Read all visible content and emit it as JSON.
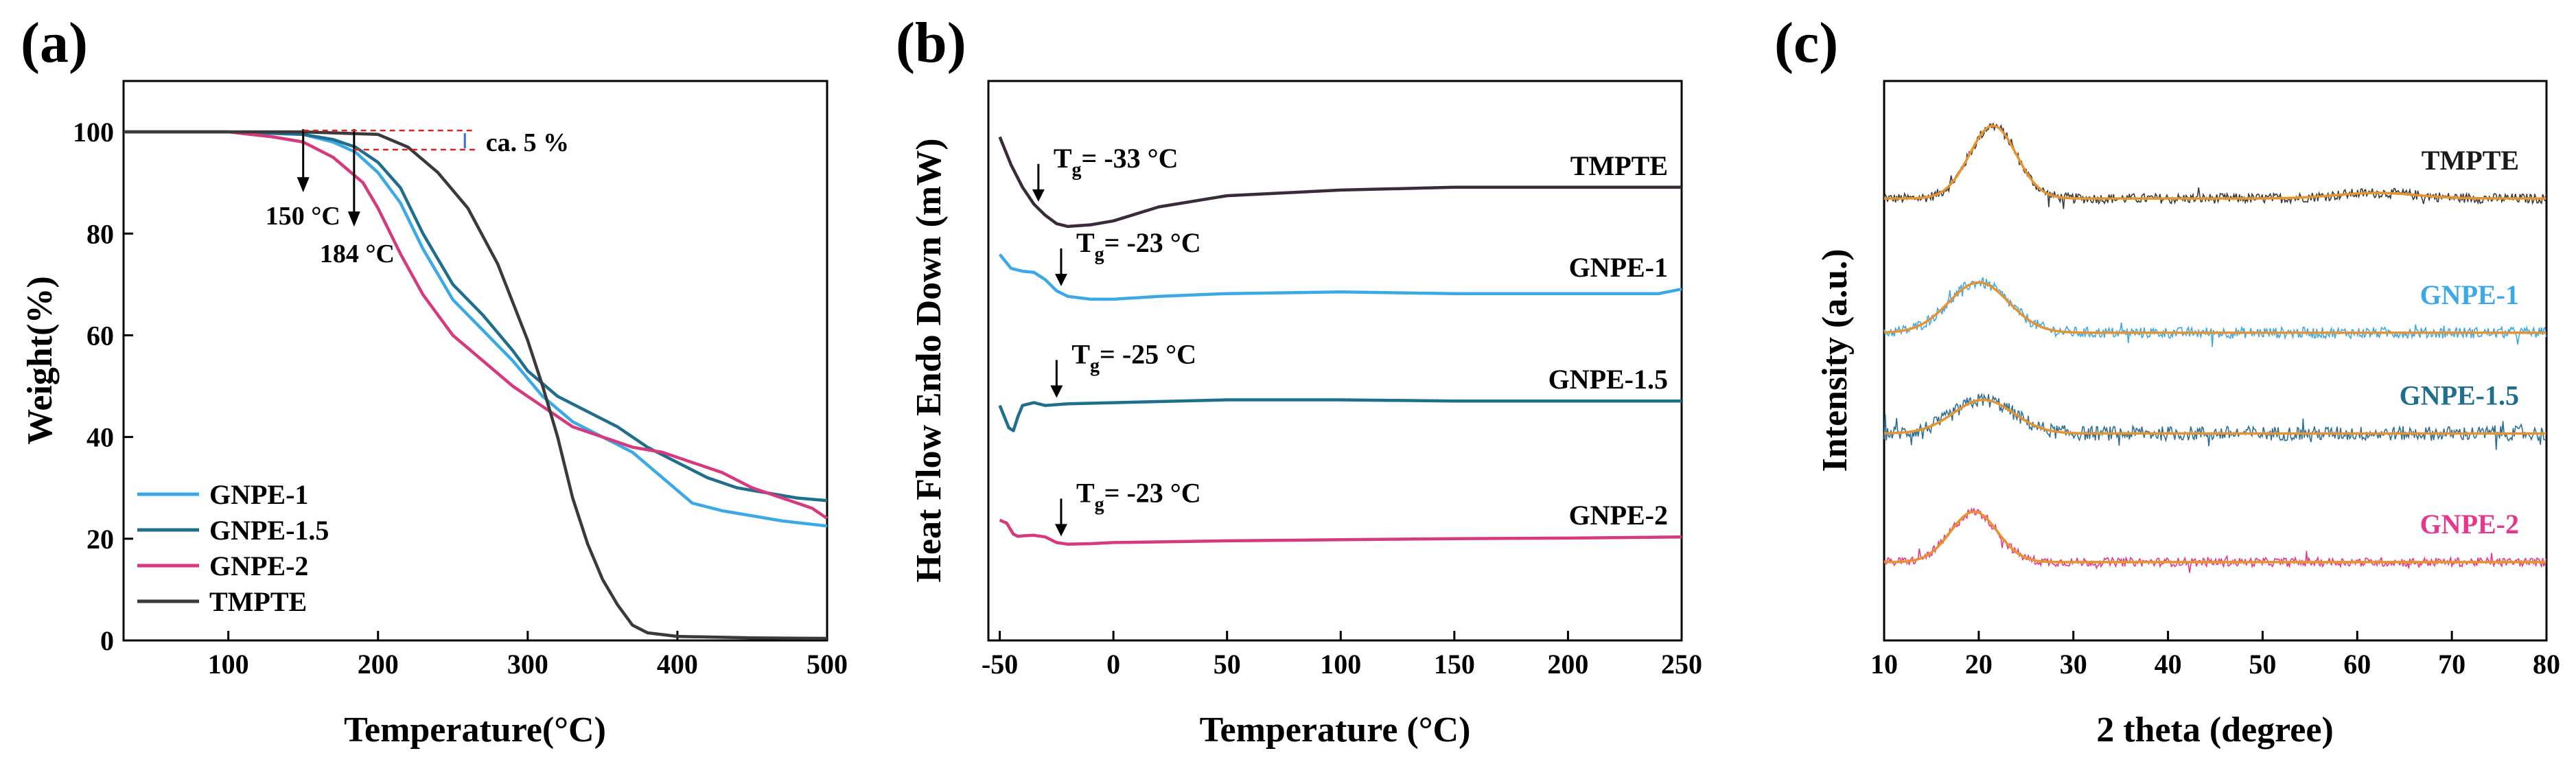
{
  "figure": {
    "panels": [
      "(a)",
      "(b)",
      "(c)"
    ]
  },
  "chart_data": [
    {
      "type": "line",
      "panel": "(a)",
      "xlabel": "Temperature(°C)",
      "ylabel": "Weight(%)",
      "xlim": [
        30,
        500
      ],
      "ylim": [
        0,
        110
      ],
      "xticks": [
        100,
        200,
        300,
        400,
        500
      ],
      "yticks": [
        0,
        20,
        40,
        60,
        80,
        100
      ],
      "legend": {
        "placement": "bottom-left",
        "items": [
          "GNPE-1",
          "GNPE-1.5",
          "GNPE-2",
          "TMPTE"
        ]
      },
      "annotations": {
        "onset1": "150 °C",
        "onset2": "184 °C",
        "loss": "ca. 5 %",
        "onset1_x": 150,
        "onset2_x": 184
      },
      "series": [
        {
          "name": "GNPE-1",
          "color": "#3BA9E6",
          "x": [
            30,
            100,
            150,
            170,
            185,
            200,
            215,
            230,
            250,
            270,
            290,
            310,
            330,
            350,
            370,
            390,
            410,
            430,
            450,
            470,
            500
          ],
          "y": [
            100,
            100,
            99.5,
            98,
            96,
            92,
            86,
            77,
            67,
            61,
            55,
            48,
            43,
            40,
            37,
            32,
            27,
            25.5,
            24.5,
            23.5,
            22.5
          ]
        },
        {
          "name": "GNPE-1.5",
          "color": "#1F6E8C",
          "x": [
            30,
            100,
            150,
            170,
            185,
            200,
            215,
            230,
            250,
            270,
            290,
            300,
            320,
            340,
            360,
            380,
            400,
            420,
            440,
            460,
            480,
            500
          ],
          "y": [
            100,
            100,
            99.5,
            98.5,
            97,
            94,
            89,
            80,
            70,
            64,
            57,
            53,
            48,
            45,
            42,
            38,
            35,
            32,
            30,
            29,
            28,
            27.5
          ]
        },
        {
          "name": "GNPE-2",
          "color": "#D63A7E",
          "x": [
            30,
            100,
            130,
            150,
            170,
            190,
            200,
            215,
            230,
            250,
            270,
            290,
            310,
            330,
            350,
            370,
            390,
            410,
            430,
            450,
            470,
            490,
            500
          ],
          "y": [
            100,
            100,
            99,
            98,
            95,
            90,
            85,
            76,
            68,
            60,
            55,
            50,
            46,
            42,
            40,
            38,
            37,
            35,
            33,
            30,
            28,
            26,
            24
          ]
        },
        {
          "name": "TMPTE",
          "color": "#3A3A3A",
          "x": [
            30,
            150,
            200,
            220,
            240,
            260,
            280,
            300,
            310,
            320,
            330,
            340,
            350,
            360,
            370,
            380,
            400,
            450,
            500
          ],
          "y": [
            100,
            100,
            99.5,
            97,
            92,
            85,
            74,
            59,
            50,
            40,
            28,
            19,
            12,
            7,
            3,
            1.5,
            0.8,
            0.5,
            0.4
          ]
        }
      ]
    },
    {
      "type": "line",
      "panel": "(b)",
      "xlabel": "Temperature (°C)",
      "ylabel": "Heat Flow Endo Down (mW)",
      "xlim": [
        -55,
        250
      ],
      "ylim": [
        0,
        100
      ],
      "xticks": [
        -50,
        0,
        50,
        100,
        150,
        200,
        250
      ],
      "series": [
        {
          "name": "TMPTE",
          "color": "#3A2B3A",
          "tg": "-33 °C",
          "tg_x": -33,
          "x": [
            -50,
            -45,
            -40,
            -35,
            -30,
            -25,
            -20,
            -10,
            0,
            20,
            50,
            100,
            150,
            200,
            250
          ],
          "y": [
            90,
            85,
            81,
            78,
            76,
            74.5,
            74,
            74.3,
            75,
            77.5,
            79.5,
            80.5,
            81,
            81,
            81
          ]
        },
        {
          "name": "GNPE-1",
          "color": "#3BA9E6",
          "tg": "-23 °C",
          "tg_x": -23,
          "x": [
            -50,
            -45,
            -40,
            -35,
            -30,
            -25,
            -20,
            -10,
            0,
            20,
            50,
            100,
            150,
            200,
            240,
            250
          ],
          "y": [
            69,
            66.5,
            66,
            65.8,
            64.5,
            62.5,
            61.5,
            61,
            61,
            61.5,
            62,
            62.3,
            62,
            62,
            62,
            62.8
          ]
        },
        {
          "name": "GNPE-1.5",
          "color": "#1F6E8C",
          "tg": "-25 °C",
          "tg_x": -25,
          "x": [
            -50,
            -48,
            -46,
            -44,
            -42,
            -40,
            -35,
            -30,
            -20,
            0,
            50,
            100,
            150,
            200,
            250
          ],
          "y": [
            42,
            40,
            38,
            37.5,
            40,
            42,
            42.5,
            42,
            42.3,
            42.5,
            43,
            43,
            42.8,
            42.8,
            42.8
          ]
        },
        {
          "name": "GNPE-2",
          "color": "#D63A7E",
          "tg": "-23 °C",
          "tg_x": -23,
          "x": [
            -50,
            -47,
            -44,
            -42,
            -40,
            -35,
            -30,
            -25,
            -20,
            -10,
            0,
            50,
            100,
            150,
            200,
            250
          ],
          "y": [
            21.5,
            21,
            19,
            18.6,
            18.7,
            18.8,
            18.5,
            17.5,
            17.2,
            17.3,
            17.5,
            17.8,
            18,
            18.2,
            18.3,
            18.5
          ]
        }
      ]
    },
    {
      "type": "line",
      "panel": "(c)",
      "xlabel": "2 theta (degree)",
      "ylabel": "Intensity (a.u.)",
      "xlim": [
        10,
        80
      ],
      "ylim": [
        0,
        100
      ],
      "xticks": [
        10,
        20,
        30,
        40,
        50,
        60,
        70,
        80
      ],
      "fit_color": "#E8932E",
      "series": [
        {
          "name": "TMPTE",
          "label_color": "#1A1A1A",
          "color": "#3A3A3A",
          "baseline": 79,
          "peak_x": 21.5,
          "peak_h": 13,
          "width": 3.5,
          "noise": 0.9,
          "tail": 1
        },
        {
          "name": "GNPE-1",
          "label_color": "#3BA9E6",
          "color": "#3BA9E6",
          "baseline": 55,
          "peak_x": 20,
          "peak_h": 9,
          "width": 4.5,
          "noise": 1.0,
          "tail": 0
        },
        {
          "name": "GNPE-1.5",
          "label_color": "#1F6E8C",
          "color": "#2D6F95",
          "baseline": 37,
          "peak_x": 20.5,
          "peak_h": 6,
          "width": 4.5,
          "noise": 1.3,
          "tail": 0
        },
        {
          "name": "GNPE-2",
          "label_color": "#E6378A",
          "color": "#E6378A",
          "baseline": 14,
          "peak_x": 19.5,
          "peak_h": 9,
          "width": 3.5,
          "noise": 0.8,
          "tail": 0
        }
      ]
    }
  ]
}
